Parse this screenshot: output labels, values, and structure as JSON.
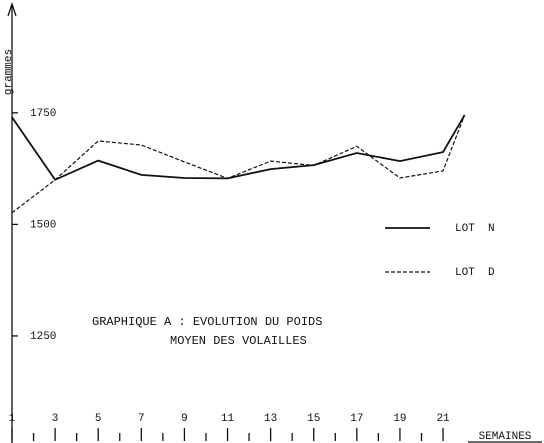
{
  "chart_data": {
    "type": "line",
    "title": [
      "GRAPHIQUE A : EVOLUTION DU POIDS",
      "MOYEN DES VOLAILLES"
    ],
    "y_label": "grammes",
    "x_label": "SEMAINES",
    "x": [
      1,
      3,
      5,
      7,
      9,
      11,
      13,
      15,
      17,
      19,
      21,
      22
    ],
    "series": [
      {
        "name": "LOT  N",
        "color": "#111111",
        "dash": "solid",
        "values": [
          1740,
          1600,
          1643,
          1611,
          1604,
          1603,
          1624,
          1633,
          1660,
          1642,
          1662,
          1745
        ]
      },
      {
        "name": "LOT  D",
        "color": "#111111",
        "dash": "dashed",
        "values": [
          1526,
          1600,
          1687,
          1678,
          1640,
          1603,
          1642,
          1632,
          1675,
          1604,
          1620,
          1745
        ]
      }
    ],
    "xlim": [
      1,
      22
    ],
    "ylim": [
      1010,
      2003
    ],
    "xticks": [
      1,
      3,
      5,
      7,
      9,
      11,
      13,
      15,
      17,
      19,
      21
    ],
    "xminorticks": [
      2,
      4,
      6,
      8,
      10,
      12,
      14,
      16,
      18,
      20
    ],
    "yticks": [
      1250,
      1500,
      1750
    ],
    "grid": false
  }
}
